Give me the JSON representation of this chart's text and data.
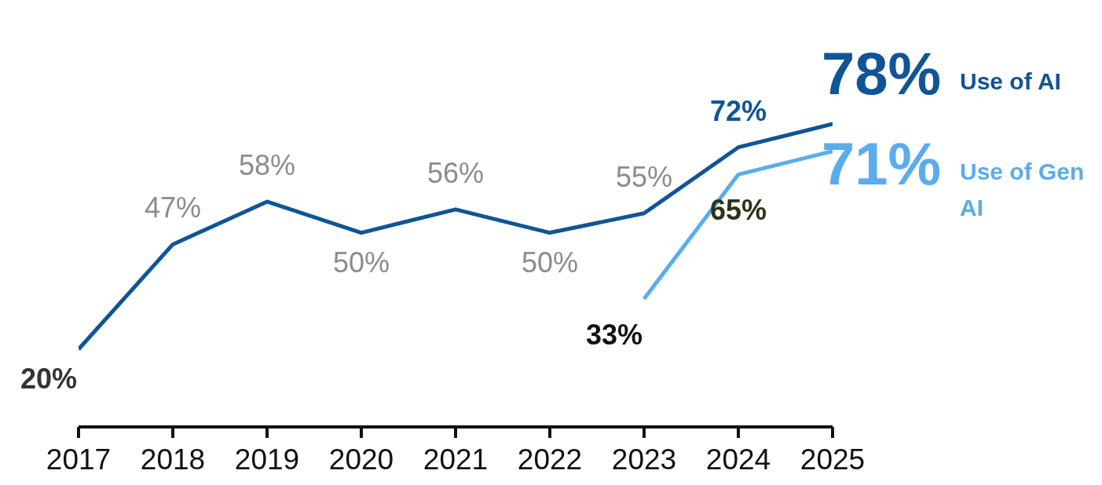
{
  "chart_data": {
    "type": "line",
    "categories": [
      "2017",
      "2018",
      "2019",
      "2020",
      "2021",
      "2022",
      "2023",
      "2024",
      "2025"
    ],
    "series": [
      {
        "name": "Use of AI",
        "color": "#0f5596",
        "values": [
          20,
          47,
          58,
          50,
          56,
          50,
          55,
          72,
          78
        ],
        "value_labels": [
          "20%",
          "47%",
          "58%",
          "50%",
          "56%",
          "50%",
          "55%",
          "72%",
          "78%"
        ]
      },
      {
        "name": "Use of Gen AI",
        "color": "#5aacee",
        "values": [
          null,
          null,
          null,
          null,
          null,
          null,
          33,
          65,
          71
        ],
        "value_labels": [
          null,
          null,
          null,
          null,
          null,
          null,
          "33%",
          "65%",
          "71%"
        ]
      }
    ],
    "marker": "none",
    "grid": false,
    "legend": false
  }
}
